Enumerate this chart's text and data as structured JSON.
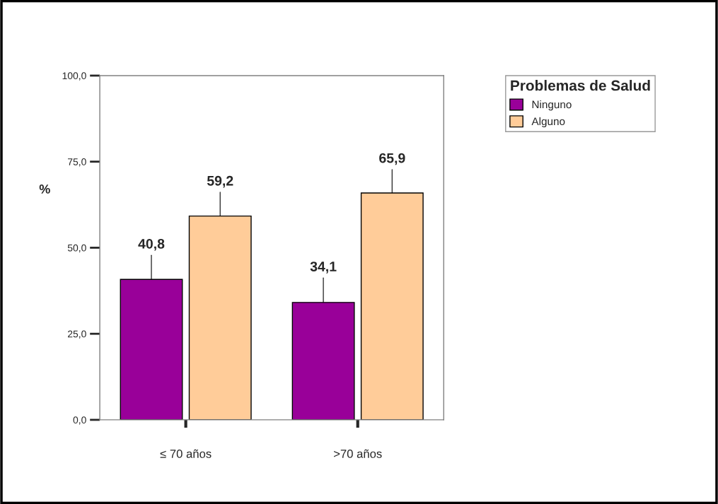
{
  "chart_data": {
    "type": "bar",
    "ylabel": "%",
    "legend_title": "Problemas de Salud",
    "legend": "right",
    "categories": [
      "≤ 70 años",
      ">70 años"
    ],
    "series": [
      {
        "name": "Ninguno",
        "color": "#990099",
        "values": [
          40.8,
          34.1
        ],
        "value_labels": [
          "40,8",
          "34,1"
        ],
        "errors": [
          [
            40.8,
            47.8
          ],
          [
            34.1,
            41.2
          ]
        ]
      },
      {
        "name": "Alguno",
        "color": "#ffcc99",
        "values": [
          59.2,
          65.9
        ],
        "value_labels": [
          "59,2",
          "65,9"
        ],
        "errors": [
          [
            59.2,
            66.1
          ],
          [
            65.9,
            72.7
          ]
        ]
      }
    ],
    "grid": false,
    "ylim": [
      0,
      100
    ],
    "yticks": [
      {
        "value": 0,
        "label": "0,0"
      },
      {
        "value": 25,
        "label": "25,0"
      },
      {
        "value": 50,
        "label": "50,0"
      },
      {
        "value": 75,
        "label": "75,0"
      },
      {
        "value": 100,
        "label": "100,0"
      }
    ]
  }
}
